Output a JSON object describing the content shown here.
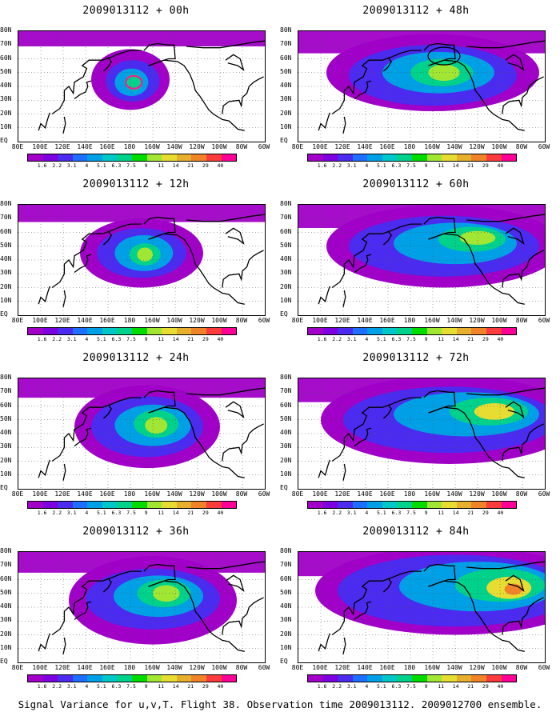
{
  "panels": [
    {
      "title": "2009013112 + 00h",
      "col": 0,
      "row": 0,
      "intensity": 0.55,
      "extent": 0.3,
      "marker": "magenta-circle"
    },
    {
      "title": "2009013112 + 12h",
      "col": 0,
      "row": 1,
      "intensity": 0.65,
      "extent": 0.45
    },
    {
      "title": "2009013112 + 24h",
      "col": 0,
      "row": 2,
      "intensity": 0.7,
      "extent": 0.6
    },
    {
      "title": "2009013112 + 36h",
      "col": 0,
      "row": 3,
      "intensity": 0.75,
      "extent": 0.7
    },
    {
      "title": "2009013112 + 48h",
      "col": 1,
      "row": 0,
      "intensity": 0.7,
      "extent": 0.8,
      "marker": "black-circle"
    },
    {
      "title": "2009013112 + 60h",
      "col": 1,
      "row": 1,
      "intensity": 0.75,
      "extent": 0.88
    },
    {
      "title": "2009013112 + 72h",
      "col": 1,
      "row": 2,
      "intensity": 0.8,
      "extent": 0.92
    },
    {
      "title": "2009013112 + 84h",
      "col": 1,
      "row": 3,
      "intensity": 0.85,
      "extent": 0.95
    }
  ],
  "lat_labels": [
    "80N",
    "70N",
    "60N",
    "50N",
    "40N",
    "30N",
    "20N",
    "10N",
    "EQ"
  ],
  "lon_labels": [
    "80E",
    "100E",
    "120E",
    "140E",
    "160E",
    "180",
    "160W",
    "140W",
    "120W",
    "100W",
    "80W",
    "60W"
  ],
  "colorbar": {
    "labels": [
      "1.6",
      "2.2",
      "3.1",
      "4",
      "5.1",
      "6.3",
      "7.5",
      "9",
      "11",
      "14",
      "21",
      "29",
      "40"
    ],
    "colors": [
      "#a000c8",
      "#7d00e0",
      "#4b2bf0",
      "#1e6eff",
      "#00a0e6",
      "#00c8c8",
      "#00d28c",
      "#00dc00",
      "#a0e632",
      "#e6dc32",
      "#e6af2d",
      "#f08228",
      "#fa3c3c",
      "#ff0096"
    ]
  },
  "footer": "Signal Variance for u,v,T. Flight 38. Observation time 2009013112. 2009012700 ensemble."
}
